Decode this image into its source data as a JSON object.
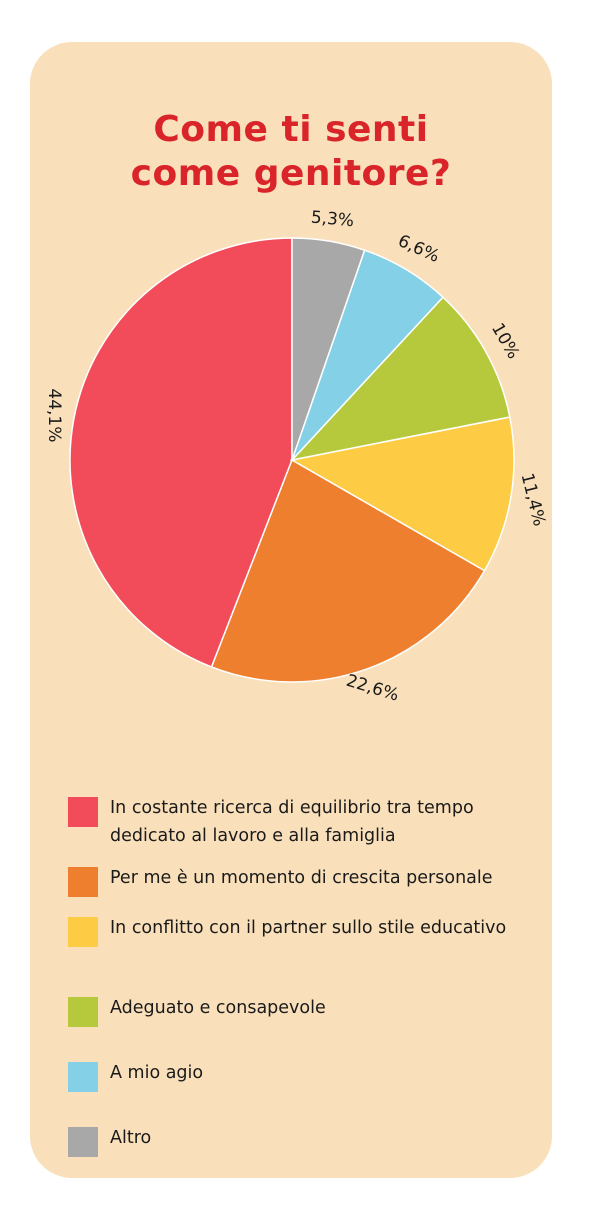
{
  "title": {
    "line1": "Come ti senti",
    "line2": "come genitore?"
  },
  "chart_data": {
    "type": "pie",
    "title": "Come ti senti come genitore?",
    "slices": [
      {
        "label": "In costante ricerca di equilibrio tra tempo dedicato al lavoro e alla famiglia",
        "value": 44.1,
        "display": "44,1%",
        "color": "#F24C5B"
      },
      {
        "label": "Per me è un momento di crescita personale",
        "value": 22.6,
        "display": "22,6%",
        "color": "#EE7F2E"
      },
      {
        "label": "In conflitto con il partner sullo stile educativo",
        "value": 11.4,
        "display": "11,4%",
        "color": "#FECB45"
      },
      {
        "label": "Adeguato e consapevole",
        "value": 10,
        "display": "10%",
        "color": "#B6C93C"
      },
      {
        "label": "A mio agio",
        "value": 6.6,
        "display": "6,6%",
        "color": "#84D0E6"
      },
      {
        "label": "Altro",
        "value": 5.3,
        "display": "5,3%",
        "color": "#A8A8A8"
      }
    ],
    "legend_placement": "bottom"
  }
}
